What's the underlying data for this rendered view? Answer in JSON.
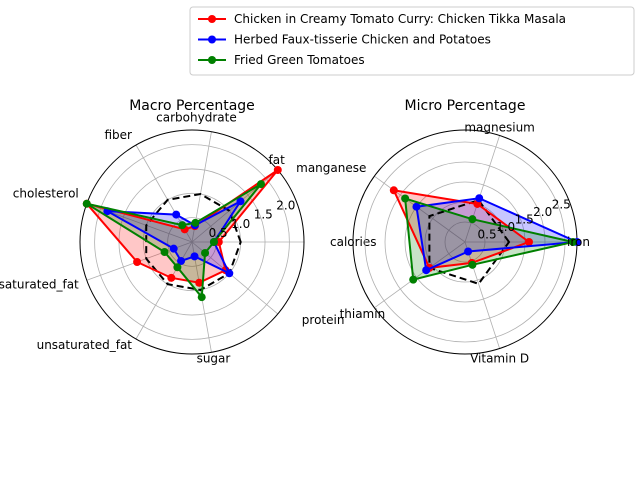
{
  "chart_data": {
    "type": "radar",
    "legend_position": "top-right",
    "series_styles": [
      {
        "name": "Chicken in Creamy Tomato Curry: Chicken Tikka Masala",
        "color": "#ff0000",
        "fill": "#ff0000"
      },
      {
        "name": "Herbed Faux-tisserie Chicken and Potatoes",
        "color": "#0000ff",
        "fill": "#0000ff"
      },
      {
        "name": "Fried Green Tomatoes",
        "color": "#008000",
        "fill": "#008000"
      }
    ],
    "reference_style": {
      "color": "#000000",
      "dash": "dashed"
    },
    "panels": [
      {
        "title": "Macro Percentage",
        "rmax": 2.3,
        "rticks": [
          0.5,
          1.0,
          1.5,
          2.0
        ],
        "rtick_labels": [
          "0.5",
          "1.0",
          "1.5",
          "2.0"
        ],
        "categories": [
          "calories",
          "fat",
          "carbohydrate",
          "fiber",
          "cholesterol",
          "saturated_fat",
          "unsaturated_fat",
          "sugar",
          "protein"
        ],
        "reference": [
          1,
          1,
          1,
          1,
          1,
          1,
          1,
          1,
          1
        ],
        "series": [
          {
            "name": "Chicken in Creamy Tomato Curry: Chicken Tikka Masala",
            "values": [
              0.55,
              2.3,
              0.33,
              0.3,
              2.3,
              1.2,
              0.85,
              0.85,
              0.9
            ]
          },
          {
            "name": "Herbed Faux-tisserie Chicken and Potatoes",
            "values": [
              0.45,
              1.3,
              0.35,
              0.65,
              1.85,
              0.4,
              0.45,
              0.3,
              1.0
            ]
          },
          {
            "name": "Fried Green Tomatoes",
            "values": [
              0.45,
              1.85,
              0.4,
              0.4,
              2.3,
              0.6,
              0.6,
              1.15,
              0.35
            ]
          }
        ]
      },
      {
        "title": "Micro Percentage",
        "rmax": 2.8,
        "rticks": [
          0.5,
          1.0,
          1.5,
          2.0,
          2.5
        ],
        "rtick_labels": [
          "0.5",
          "1.0",
          "1.5",
          "2.0",
          "2.5"
        ],
        "categories": [
          "iron",
          "magnesium",
          "manganese",
          "thiamin",
          "Vitamin D"
        ],
        "reference": [
          1.1,
          1.1,
          1.1,
          1.1,
          1.1
        ],
        "series": [
          {
            "name": "Chicken in Creamy Tomato Curry: Chicken Tikka Masala",
            "values": [
              1.6,
              1.0,
              2.2,
              1.1,
              0.55
            ]
          },
          {
            "name": "Herbed Faux-tisserie Chicken and Potatoes",
            "values": [
              2.8,
              1.15,
              1.5,
              1.2,
              0.25
            ]
          },
          {
            "name": "Fried Green Tomatoes",
            "values": [
              2.7,
              0.6,
              1.85,
              1.6,
              0.6
            ]
          }
        ]
      }
    ]
  }
}
